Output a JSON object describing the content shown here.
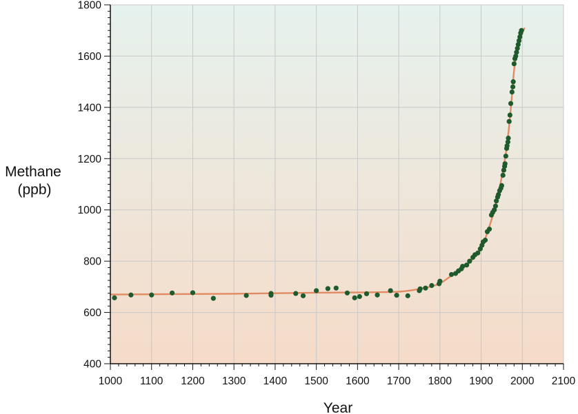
{
  "chart_data": {
    "type": "scatter",
    "title": "",
    "xlabel": "Year",
    "ylabel_line1": "Methane",
    "ylabel_line2": "(ppb)",
    "xlim": [
      1000,
      2100
    ],
    "ylim": [
      400,
      1800
    ],
    "x_ticks": [
      1000,
      1100,
      1200,
      1300,
      1400,
      1500,
      1600,
      1700,
      1800,
      1900,
      2000,
      2100
    ],
    "y_ticks": [
      400,
      600,
      800,
      1000,
      1200,
      1400,
      1600,
      1800
    ],
    "grid": true,
    "background_gradient": [
      "#e6f2ee",
      "#f5dbc8"
    ],
    "colors": {
      "points": "#1f5a2c",
      "trend": "#e28a63",
      "grid": "#c8c8c8",
      "axis": "#111111"
    },
    "series": [
      {
        "kind": "scatter",
        "points": [
          [
            1010,
            657
          ],
          [
            1050,
            668
          ],
          [
            1100,
            668
          ],
          [
            1150,
            676
          ],
          [
            1200,
            677
          ],
          [
            1250,
            655
          ],
          [
            1330,
            666
          ],
          [
            1390,
            667
          ],
          [
            1390,
            674
          ],
          [
            1450,
            674
          ],
          [
            1468,
            665
          ],
          [
            1500,
            685
          ],
          [
            1528,
            693
          ],
          [
            1548,
            695
          ],
          [
            1575,
            676
          ],
          [
            1593,
            657
          ],
          [
            1605,
            662
          ],
          [
            1622,
            673
          ],
          [
            1648,
            668
          ],
          [
            1680,
            685
          ],
          [
            1695,
            667
          ],
          [
            1722,
            665
          ],
          [
            1750,
            685
          ],
          [
            1752,
            692
          ],
          [
            1765,
            695
          ],
          [
            1780,
            705
          ],
          [
            1798,
            712
          ],
          [
            1800,
            722
          ],
          [
            1828,
            748
          ],
          [
            1838,
            752
          ],
          [
            1845,
            762
          ],
          [
            1852,
            770
          ],
          [
            1855,
            780
          ],
          [
            1865,
            785
          ],
          [
            1872,
            800
          ],
          [
            1880,
            815
          ],
          [
            1885,
            825
          ],
          [
            1892,
            832
          ],
          [
            1898,
            848
          ],
          [
            1902,
            862
          ],
          [
            1905,
            875
          ],
          [
            1910,
            882
          ],
          [
            1915,
            915
          ],
          [
            1920,
            925
          ],
          [
            1925,
            980
          ],
          [
            1928,
            990
          ],
          [
            1932,
            1000
          ],
          [
            1935,
            1015
          ],
          [
            1937,
            1035
          ],
          [
            1940,
            1050
          ],
          [
            1942,
            1060
          ],
          [
            1945,
            1075
          ],
          [
            1948,
            1085
          ],
          [
            1950,
            1095
          ],
          [
            1953,
            1135
          ],
          [
            1955,
            1155
          ],
          [
            1957,
            1170
          ],
          [
            1958,
            1180
          ],
          [
            1960,
            1210
          ],
          [
            1962,
            1240
          ],
          [
            1963,
            1250
          ],
          [
            1965,
            1265
          ],
          [
            1966,
            1280
          ],
          [
            1968,
            1345
          ],
          [
            1970,
            1370
          ],
          [
            1972,
            1415
          ],
          [
            1975,
            1460
          ],
          [
            1977,
            1480
          ],
          [
            1978,
            1500
          ],
          [
            1980,
            1570
          ],
          [
            1982,
            1590
          ],
          [
            1984,
            1600
          ],
          [
            1986,
            1615
          ],
          [
            1988,
            1630
          ],
          [
            1990,
            1645
          ],
          [
            1992,
            1660
          ],
          [
            1994,
            1675
          ],
          [
            1996,
            1690
          ],
          [
            1998,
            1700
          ]
        ]
      },
      {
        "kind": "line",
        "points": [
          [
            1000,
            670
          ],
          [
            1100,
            671
          ],
          [
            1200,
            672
          ],
          [
            1300,
            673
          ],
          [
            1400,
            675
          ],
          [
            1500,
            677
          ],
          [
            1600,
            678
          ],
          [
            1650,
            679
          ],
          [
            1700,
            681
          ],
          [
            1730,
            686
          ],
          [
            1750,
            692
          ],
          [
            1775,
            700
          ],
          [
            1800,
            713
          ],
          [
            1825,
            740
          ],
          [
            1850,
            765
          ],
          [
            1875,
            800
          ],
          [
            1900,
            850
          ],
          [
            1920,
            935
          ],
          [
            1940,
            1050
          ],
          [
            1960,
            1220
          ],
          [
            1970,
            1360
          ],
          [
            1975,
            1450
          ],
          [
            1980,
            1545
          ],
          [
            1985,
            1600
          ],
          [
            1990,
            1640
          ],
          [
            2000,
            1690
          ],
          [
            2005,
            1708
          ]
        ]
      }
    ]
  }
}
